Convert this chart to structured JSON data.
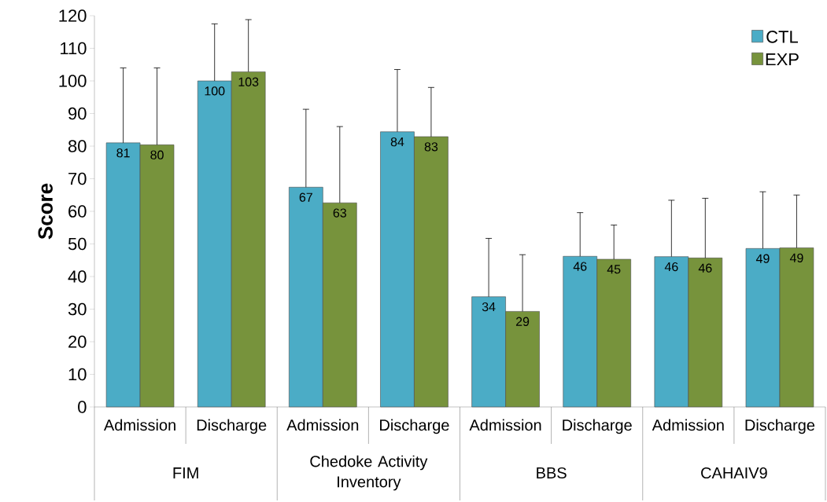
{
  "chart_data": {
    "type": "bar",
    "ylabel": "Score",
    "categories": [
      "Admission",
      "Discharge",
      "Admission",
      "Discharge",
      "Admission",
      "Discharge",
      "Admission",
      "Discharge"
    ],
    "annotations": [
      "FIM",
      "Chedoke Activity Inventory",
      "BBS",
      "CAHAIV9"
    ],
    "ylim": [
      0,
      120
    ],
    "yticks": [
      0,
      10,
      20,
      30,
      40,
      50,
      60,
      70,
      80,
      90,
      100,
      110,
      120
    ],
    "grid": false,
    "legend": "top right",
    "series": [
      {
        "name": "CTL",
        "color": "#4bacc6",
        "values": [
          81,
          100,
          67.4,
          84.4,
          33.8,
          46.2,
          46.1,
          48.6
        ],
        "value_labels": [
          "81",
          "100",
          "67",
          "84",
          "34",
          "46",
          "46",
          "49"
        ],
        "errors": [
          [
            81,
            104
          ],
          [
            100,
            117.5
          ],
          [
            67.4,
            91.3
          ],
          [
            84.4,
            103.5
          ],
          [
            33.8,
            51.7
          ],
          [
            46.2,
            59.6
          ],
          [
            46.1,
            63.4
          ],
          [
            48.6,
            66
          ]
        ]
      },
      {
        "name": "EXP",
        "color": "#77933c",
        "values": [
          80.4,
          102.8,
          62.6,
          82.9,
          29.3,
          45.3,
          45.7,
          48.8
        ],
        "value_labels": [
          "80",
          "103",
          "63",
          "83",
          "29",
          "45",
          "46",
          "49"
        ],
        "errors": [
          [
            80.4,
            104
          ],
          [
            102.8,
            118.8
          ],
          [
            62.6,
            86
          ],
          [
            82.9,
            98
          ],
          [
            29.3,
            46.7
          ],
          [
            45.3,
            55.8
          ],
          [
            45.7,
            64
          ],
          [
            48.8,
            65
          ]
        ]
      }
    ]
  }
}
